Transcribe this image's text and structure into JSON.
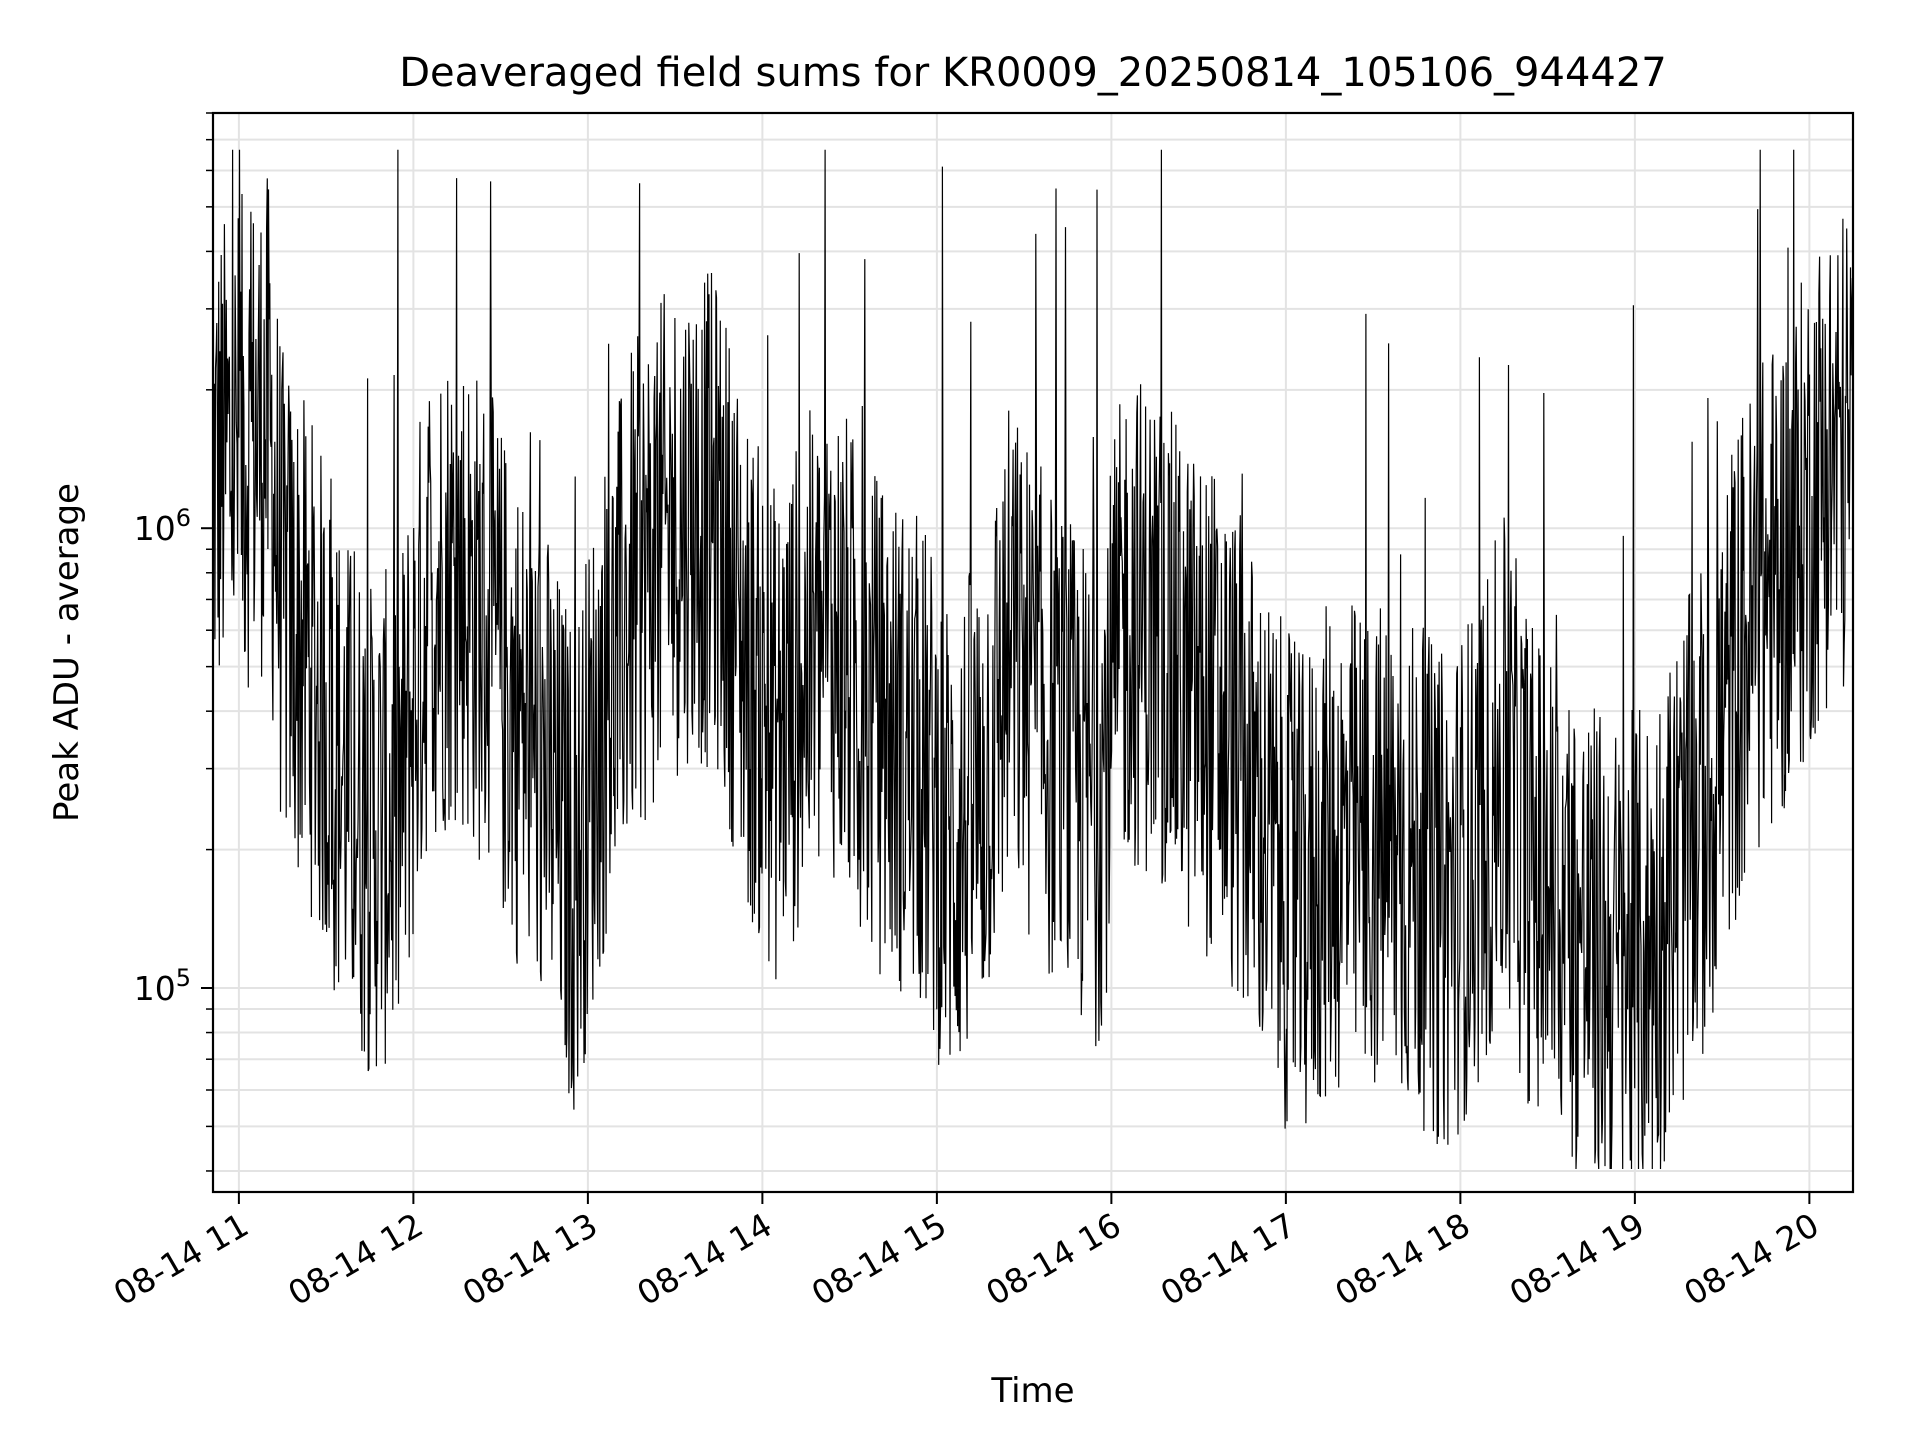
{
  "chart_data": {
    "type": "line",
    "title": "Deaveraged field sums for KR0009_20250814_105106_944427",
    "xlabel": "Time",
    "ylabel": "Peak ADU - average",
    "x_scale": "time",
    "y_scale": "log",
    "xlim": [
      "2025-08-14 10:51:06",
      "2025-08-14 20:15"
    ],
    "ylim": [
      36000,
      8000000
    ],
    "x_ticks": [
      "08-14 11",
      "08-14 12",
      "08-14 13",
      "08-14 14",
      "08-14 15",
      "08-14 16",
      "08-14 17",
      "08-14 18",
      "08-14 19",
      "08-14 20"
    ],
    "y_ticks": [
      {
        "base": "10",
        "exp": "5",
        "value": 100000
      },
      {
        "base": "10",
        "exp": "6",
        "value": 1000000
      }
    ],
    "grid": true,
    "legend": "none",
    "line_color": "#000000",
    "series": [
      {
        "x": [
          "2025-08-14 10:51:06",
          "2025-08-14 11:00",
          "2025-08-14 11:10",
          "2025-08-14 11:15",
          "2025-08-14 11:25",
          "2025-08-14 11:35",
          "2025-08-14 11:45",
          "2025-08-14 11:55",
          "2025-08-14 12:05",
          "2025-08-14 12:15",
          "2025-08-14 12:25",
          "2025-08-14 12:35",
          "2025-08-14 12:45",
          "2025-08-14 12:55",
          "2025-08-14 13:05",
          "2025-08-14 13:15",
          "2025-08-14 13:25",
          "2025-08-14 13:35",
          "2025-08-14 13:45",
          "2025-08-14 13:55",
          "2025-08-14 14:05",
          "2025-08-14 14:15",
          "2025-08-14 14:25",
          "2025-08-14 14:35",
          "2025-08-14 14:45",
          "2025-08-14 14:55",
          "2025-08-14 15:05",
          "2025-08-14 15:15",
          "2025-08-14 15:25",
          "2025-08-14 15:35",
          "2025-08-14 15:45",
          "2025-08-14 15:55",
          "2025-08-14 16:05",
          "2025-08-14 16:15",
          "2025-08-14 16:25",
          "2025-08-14 16:35",
          "2025-08-14 16:45",
          "2025-08-14 16:55",
          "2025-08-14 17:05",
          "2025-08-14 17:15",
          "2025-08-14 17:25",
          "2025-08-14 17:35",
          "2025-08-14 17:45",
          "2025-08-14 17:55",
          "2025-08-14 18:05",
          "2025-08-14 18:15",
          "2025-08-14 18:25",
          "2025-08-14 18:35",
          "2025-08-14 18:45",
          "2025-08-14 18:55",
          "2025-08-14 19:05",
          "2025-08-14 19:15",
          "2025-08-14 19:25",
          "2025-08-14 19:35",
          "2025-08-14 19:45",
          "2025-08-14 19:55",
          "2025-08-14 20:05",
          "2025-08-14 20:15"
        ],
        "y": [
          1300000,
          1500000,
          1700000,
          700000,
          500000,
          300000,
          220000,
          240000,
          700000,
          800000,
          600000,
          400000,
          300000,
          180000,
          400000,
          700000,
          900000,
          1100000,
          1000000,
          500000,
          350000,
          500000,
          600000,
          400000,
          350000,
          300000,
          200000,
          260000,
          550000,
          400000,
          300000,
          250000,
          650000,
          600000,
          450000,
          400000,
          300000,
          200000,
          150000,
          200000,
          200000,
          200000,
          180000,
          150000,
          200000,
          300000,
          180000,
          150000,
          120000,
          110000,
          120000,
          180000,
          250000,
          500000,
          700000,
          900000,
          1400000,
          1500000
        ]
      }
    ]
  }
}
